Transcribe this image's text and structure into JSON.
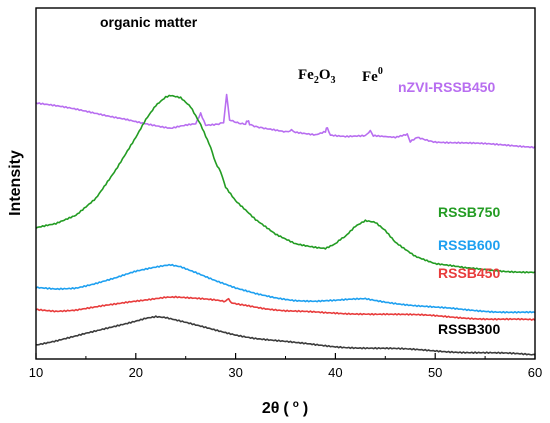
{
  "chart_data": {
    "type": "line",
    "xlabel_symbol": "2θ",
    "xlabel_unit_open": "(",
    "xlabel_unit_mark": "o",
    "xlabel_unit_close": ")",
    "ylabel": "Intensity",
    "xlim": [
      10,
      60
    ],
    "xticks": [
      "10",
      "20",
      "30",
      "40",
      "50",
      "60"
    ],
    "grid": false,
    "series": [
      {
        "name": "nZVI-RSSB450",
        "color": "#b86ef0",
        "points": [
          [
            10,
            0.27
          ],
          [
            13,
            0.285
          ],
          [
            16,
            0.3
          ],
          [
            19,
            0.315
          ],
          [
            21,
            0.33
          ],
          [
            22.5,
            0.34
          ],
          [
            23.5,
            0.345
          ],
          [
            25,
            0.335
          ],
          [
            26.0,
            0.33
          ],
          [
            26.5,
            0.3
          ],
          [
            27,
            0.333
          ],
          [
            28,
            0.33
          ],
          [
            28.8,
            0.325
          ],
          [
            29.1,
            0.25
          ],
          [
            29.4,
            0.32
          ],
          [
            31,
            0.33
          ],
          [
            31.2,
            0.32
          ],
          [
            31.4,
            0.33
          ],
          [
            33,
            0.345
          ],
          [
            35,
            0.355
          ],
          [
            35.6,
            0.345
          ],
          [
            36,
            0.355
          ],
          [
            38,
            0.36
          ],
          [
            39,
            0.35
          ],
          [
            39.2,
            0.34
          ],
          [
            39.5,
            0.36
          ],
          [
            41,
            0.365
          ],
          [
            43,
            0.365
          ],
          [
            43.5,
            0.352
          ],
          [
            43.8,
            0.365
          ],
          [
            46,
            0.37
          ],
          [
            47.2,
            0.362
          ],
          [
            47.5,
            0.38
          ],
          [
            48.2,
            0.37
          ],
          [
            50,
            0.38
          ],
          [
            53,
            0.385
          ],
          [
            56,
            0.39
          ],
          [
            60,
            0.395
          ]
        ]
      },
      {
        "name": "RSSB750",
        "color": "#239c23",
        "points": [
          [
            10,
            0.628
          ],
          [
            12,
            0.616
          ],
          [
            14,
            0.59
          ],
          [
            16,
            0.54
          ],
          [
            18,
            0.46
          ],
          [
            20,
            0.37
          ],
          [
            21,
            0.32
          ],
          [
            22,
            0.28
          ],
          [
            23,
            0.255
          ],
          [
            23.5,
            0.25
          ],
          [
            24.5,
            0.255
          ],
          [
            25.5,
            0.28
          ],
          [
            26.5,
            0.33
          ],
          [
            27.5,
            0.395
          ],
          [
            28,
            0.44
          ],
          [
            28.5,
            0.465
          ],
          [
            29,
            0.51
          ],
          [
            30,
            0.55
          ],
          [
            32,
            0.605
          ],
          [
            34,
            0.645
          ],
          [
            36,
            0.67
          ],
          [
            38,
            0.68
          ],
          [
            39,
            0.684
          ],
          [
            40,
            0.672
          ],
          [
            40.5,
            0.66
          ],
          [
            41,
            0.652
          ],
          [
            42,
            0.624
          ],
          [
            43,
            0.608
          ],
          [
            44,
            0.612
          ],
          [
            45,
            0.634
          ],
          [
            46,
            0.666
          ],
          [
            48,
            0.705
          ],
          [
            50,
            0.728
          ],
          [
            53,
            0.742
          ],
          [
            56,
            0.748
          ],
          [
            60,
            0.752
          ]
        ]
      },
      {
        "name": "RSSB600",
        "color": "#1ea0f0",
        "points": [
          [
            10,
            0.798
          ],
          [
            12,
            0.8
          ],
          [
            14,
            0.796
          ],
          [
            16,
            0.784
          ],
          [
            18,
            0.77
          ],
          [
            20,
            0.752
          ],
          [
            22,
            0.738
          ],
          [
            23,
            0.732
          ],
          [
            23.5,
            0.73
          ],
          [
            24.5,
            0.735
          ],
          [
            26,
            0.752
          ],
          [
            28,
            0.778
          ],
          [
            30,
            0.8
          ],
          [
            32,
            0.814
          ],
          [
            34,
            0.824
          ],
          [
            36,
            0.832
          ],
          [
            38,
            0.836
          ],
          [
            40,
            0.835
          ],
          [
            42,
            0.83
          ],
          [
            43,
            0.828
          ],
          [
            44,
            0.832
          ],
          [
            46,
            0.84
          ],
          [
            48,
            0.848
          ],
          [
            50,
            0.854
          ],
          [
            53,
            0.86
          ],
          [
            56,
            0.864
          ],
          [
            60,
            0.868
          ]
        ]
      },
      {
        "name": "RSSB450",
        "color": "#e83c3c",
        "points": [
          [
            10,
            0.858
          ],
          [
            12,
            0.862
          ],
          [
            14,
            0.86
          ],
          [
            16,
            0.853
          ],
          [
            18,
            0.845
          ],
          [
            20,
            0.835
          ],
          [
            22,
            0.826
          ],
          [
            23,
            0.822
          ],
          [
            24,
            0.822
          ],
          [
            26,
            0.828
          ],
          [
            28,
            0.834
          ],
          [
            29,
            0.838
          ],
          [
            29.3,
            0.826
          ],
          [
            29.6,
            0.838
          ],
          [
            31,
            0.846
          ],
          [
            33,
            0.855
          ],
          [
            35,
            0.862
          ],
          [
            37,
            0.866
          ],
          [
            39,
            0.87
          ],
          [
            41,
            0.871
          ],
          [
            43,
            0.87
          ],
          [
            45,
            0.871
          ],
          [
            47,
            0.874
          ],
          [
            50,
            0.878
          ],
          [
            53,
            0.882
          ],
          [
            56,
            0.886
          ],
          [
            60,
            0.89
          ]
        ]
      },
      {
        "name": "RSSB300",
        "color": "#3c3c3c",
        "points": [
          [
            10,
            0.958
          ],
          [
            12,
            0.948
          ],
          [
            14,
            0.936
          ],
          [
            16,
            0.922
          ],
          [
            18,
            0.906
          ],
          [
            20,
            0.89
          ],
          [
            21,
            0.882
          ],
          [
            22,
            0.878
          ],
          [
            23,
            0.882
          ],
          [
            24,
            0.89
          ],
          [
            26,
            0.905
          ],
          [
            28,
            0.918
          ],
          [
            30,
            0.93
          ],
          [
            32,
            0.94
          ],
          [
            34,
            0.948
          ],
          [
            36,
            0.955
          ],
          [
            38,
            0.96
          ],
          [
            40,
            0.964
          ],
          [
            43,
            0.968
          ],
          [
            46,
            0.972
          ],
          [
            50,
            0.976
          ],
          [
            53,
            0.98
          ],
          [
            56,
            0.984
          ],
          [
            60,
            0.988
          ]
        ]
      }
    ],
    "annotations": {
      "organic_matter": "organic matter",
      "fe2o3_base": "Fe",
      "fe2o3_sub": "2",
      "fe2o3_tail": "O",
      "fe2o3_sub2": "3",
      "fe0_base": "Fe",
      "fe0_sup": "0"
    }
  }
}
